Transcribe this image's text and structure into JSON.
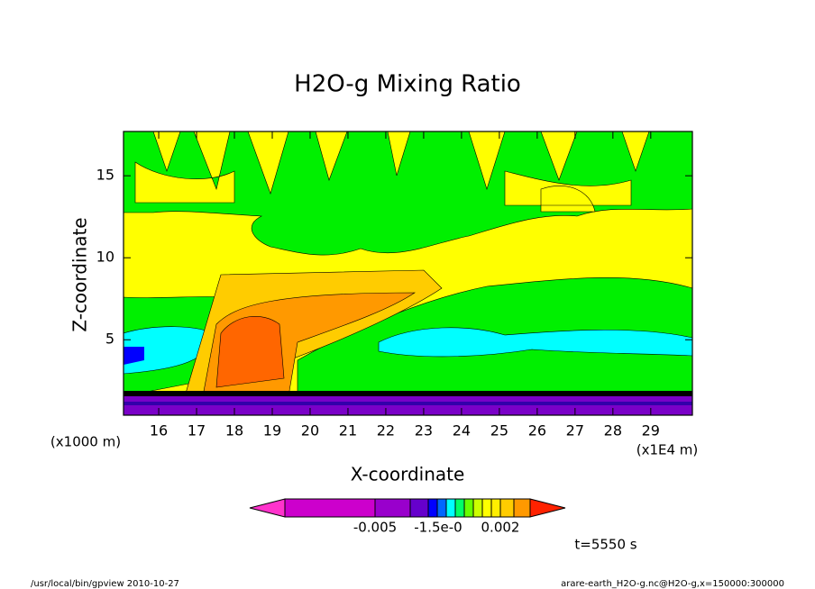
{
  "chart_data": {
    "type": "contour",
    "title": "H2O-g Mixing Ratio",
    "x_label": "X-coordinate",
    "y_label": "Z-coordinate",
    "x_unit": "(x1E4 m)",
    "y_unit": "(x1000 m)",
    "xlim": [
      15.07,
      30.1
    ],
    "ylim": [
      0.4,
      17.7
    ],
    "xticks": [
      16,
      17,
      18,
      19,
      20,
      21,
      22,
      23,
      24,
      25,
      26,
      27,
      28,
      29
    ],
    "yticks": [
      5,
      10,
      15
    ],
    "colorbar_labels": [
      "-0.005",
      "-1.5e-0",
      "0.002"
    ],
    "time_label": "t=5550 s",
    "footer_left": "/usr/local/bin/gpview  2010-10-27",
    "footer_right": "arare-earth_H2O-g.nc@H2O-g,x=150000:300000"
  }
}
